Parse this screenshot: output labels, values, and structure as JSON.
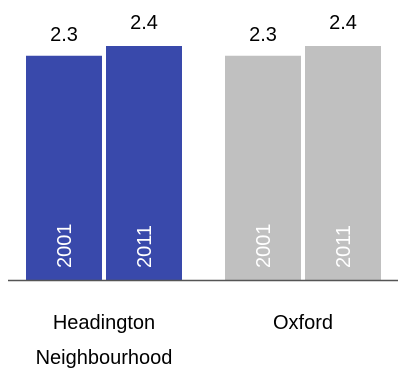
{
  "chart_data": {
    "type": "bar",
    "title": "",
    "xlabel": "",
    "ylabel": "",
    "ylim": [
      0,
      2.4
    ],
    "grid": false,
    "legend": "none",
    "groups": [
      {
        "category_lines": [
          "Headington",
          "Neighbourhood"
        ],
        "color": "#3949ab",
        "bars": [
          {
            "year": "2001",
            "value": 2.3,
            "label": "2.3"
          },
          {
            "year": "2011",
            "value": 2.4,
            "label": "2.4"
          }
        ]
      },
      {
        "category_lines": [
          "Oxford"
        ],
        "color": "#c0c0c0",
        "bars": [
          {
            "year": "2001",
            "value": 2.3,
            "label": "2.3"
          },
          {
            "year": "2011",
            "value": 2.4,
            "label": "2.4"
          }
        ]
      }
    ],
    "axis_color": "#555555"
  }
}
